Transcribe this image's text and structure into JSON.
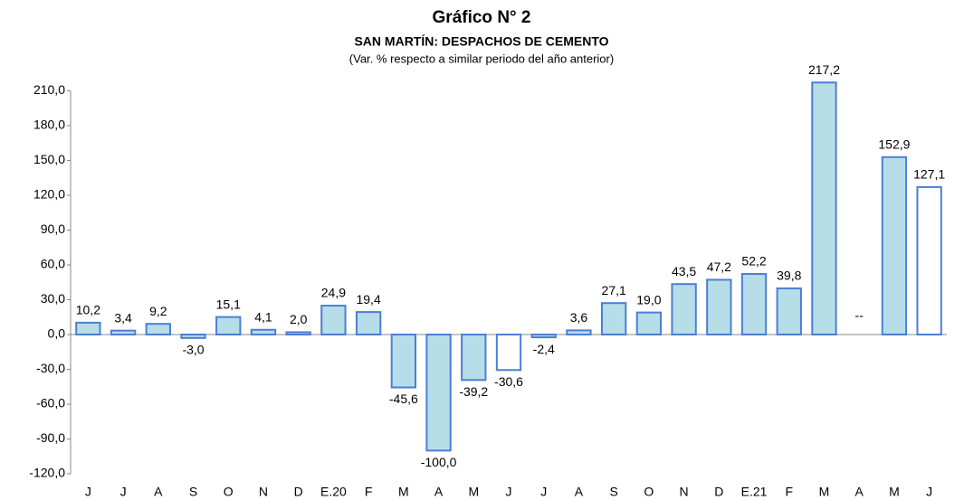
{
  "chart_data": {
    "type": "bar",
    "title": "Gráfico N° 2",
    "subtitle": "SAN MARTÍN: DESPACHOS DE CEMENTO",
    "note": "(Var. % respecto a similar periodo del año anterior)",
    "categories": [
      "J",
      "J",
      "A",
      "S",
      "O",
      "N",
      "D",
      "E.20",
      "F",
      "M",
      "A",
      "M",
      "J",
      "J",
      "A",
      "S",
      "O",
      "N",
      "D",
      "E.21",
      "F",
      "M",
      "A",
      "M",
      "J"
    ],
    "values": [
      10.2,
      3.4,
      9.2,
      -3.0,
      15.1,
      4.1,
      2.0,
      24.9,
      19.4,
      -45.6,
      -100.0,
      -39.2,
      -30.6,
      -2.4,
      3.6,
      27.1,
      19.0,
      43.5,
      47.2,
      52.2,
      39.8,
      217.2,
      null,
      152.9,
      127.1
    ],
    "value_labels": [
      "10,2",
      "3,4",
      "9,2",
      "-3,0",
      "15,1",
      "4,1",
      "2,0",
      "24,9",
      "19,4",
      "-45,6",
      "-100,0",
      "-39,2",
      "-30,6",
      "-2,4",
      "3,6",
      "27,1",
      "19,0",
      "43,5",
      "47,2",
      "52,2",
      "39,8",
      "217,2",
      "--",
      "152,9",
      "127,1"
    ],
    "colors": [
      "#b7dde8",
      "#b7dde8",
      "#b7dde8",
      "#b7dde8",
      "#b7dde8",
      "#b7dde8",
      "#b7dde8",
      "#b7dde8",
      "#b7dde8",
      "#b7dde8",
      "#b7dde8",
      "#b7dde8",
      "#ffffff",
      "#b7dde8",
      "#b7dde8",
      "#b7dde8",
      "#b7dde8",
      "#b7dde8",
      "#b7dde8",
      "#b7dde8",
      "#b7dde8",
      "#b7dde8",
      "#b7dde8",
      "#b7dde8",
      "#ffffff"
    ],
    "edge_color": "#4a7fd4",
    "ylim": [
      -120,
      240
    ],
    "yticks": [
      {
        "value": -120,
        "label": "-120,0"
      },
      {
        "value": -90,
        "label": "-90,0"
      },
      {
        "value": -60,
        "label": "-60,0"
      },
      {
        "value": -30,
        "label": "-30,0"
      },
      {
        "value": 0,
        "label": "0,0"
      },
      {
        "value": 30,
        "label": "30,0"
      },
      {
        "value": 60,
        "label": "60,0"
      },
      {
        "value": 90,
        "label": "90,0"
      },
      {
        "value": 120,
        "label": "120,0"
      },
      {
        "value": 150,
        "label": "150,0"
      },
      {
        "value": 180,
        "label": "180,0"
      },
      {
        "value": 210,
        "label": "210,0"
      }
    ]
  }
}
